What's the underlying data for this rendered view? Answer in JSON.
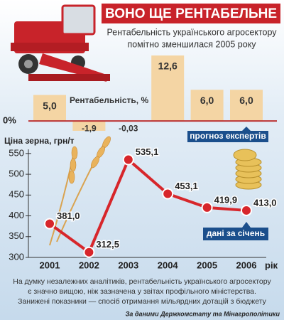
{
  "chart_data": [
    {
      "type": "bar",
      "title": "ВОНО ЩЕ РЕНТАБЕЛЬНЕ",
      "subtitle": [
        "Рентабельність українського агросектору",
        "помітно зменшилася 2005 року"
      ],
      "y_label": "Рентабельність, %",
      "values": [
        5.0,
        -1.9,
        -0.03,
        12.6,
        6.0,
        6.0
      ],
      "value_labels": [
        "5,0",
        "-1,9",
        "-0,03",
        "12,6",
        "6,0",
        "6,0"
      ],
      "color": "#f4d5a4",
      "ylim": [
        -3,
        15
      ],
      "yticks": [
        {
          "value": 0,
          "label": "0%"
        }
      ],
      "annotation": "прогноз експертів"
    },
    {
      "type": "line",
      "y_label": "Ціна зерна, грн/т",
      "categories": [
        "2001",
        "2002",
        "2003",
        "2004",
        "2005",
        "2006"
      ],
      "x_label": "рік",
      "values": [
        381.0,
        312.5,
        535.1,
        453.1,
        419.9,
        413.0
      ],
      "value_labels": [
        "381,0",
        "312,5",
        "535,1",
        "453,1",
        "419,9",
        "413,0"
      ],
      "color": "#d7262b",
      "ylim": [
        300,
        560
      ],
      "yticks": [
        300,
        350,
        400,
        450,
        500,
        550
      ],
      "annotation": "дані за січень"
    }
  ],
  "footer": {
    "note": [
      "На думку незалежних аналітиків, рентабельність українського агросектору",
      "є значно вищою, ніж зазначена у звітах профільного міністерства.",
      "Занижені показники — спосіб отримання мільярдних дотацій з бюджету"
    ],
    "source": "За даними Держкомстату та Мінагрополітики"
  }
}
